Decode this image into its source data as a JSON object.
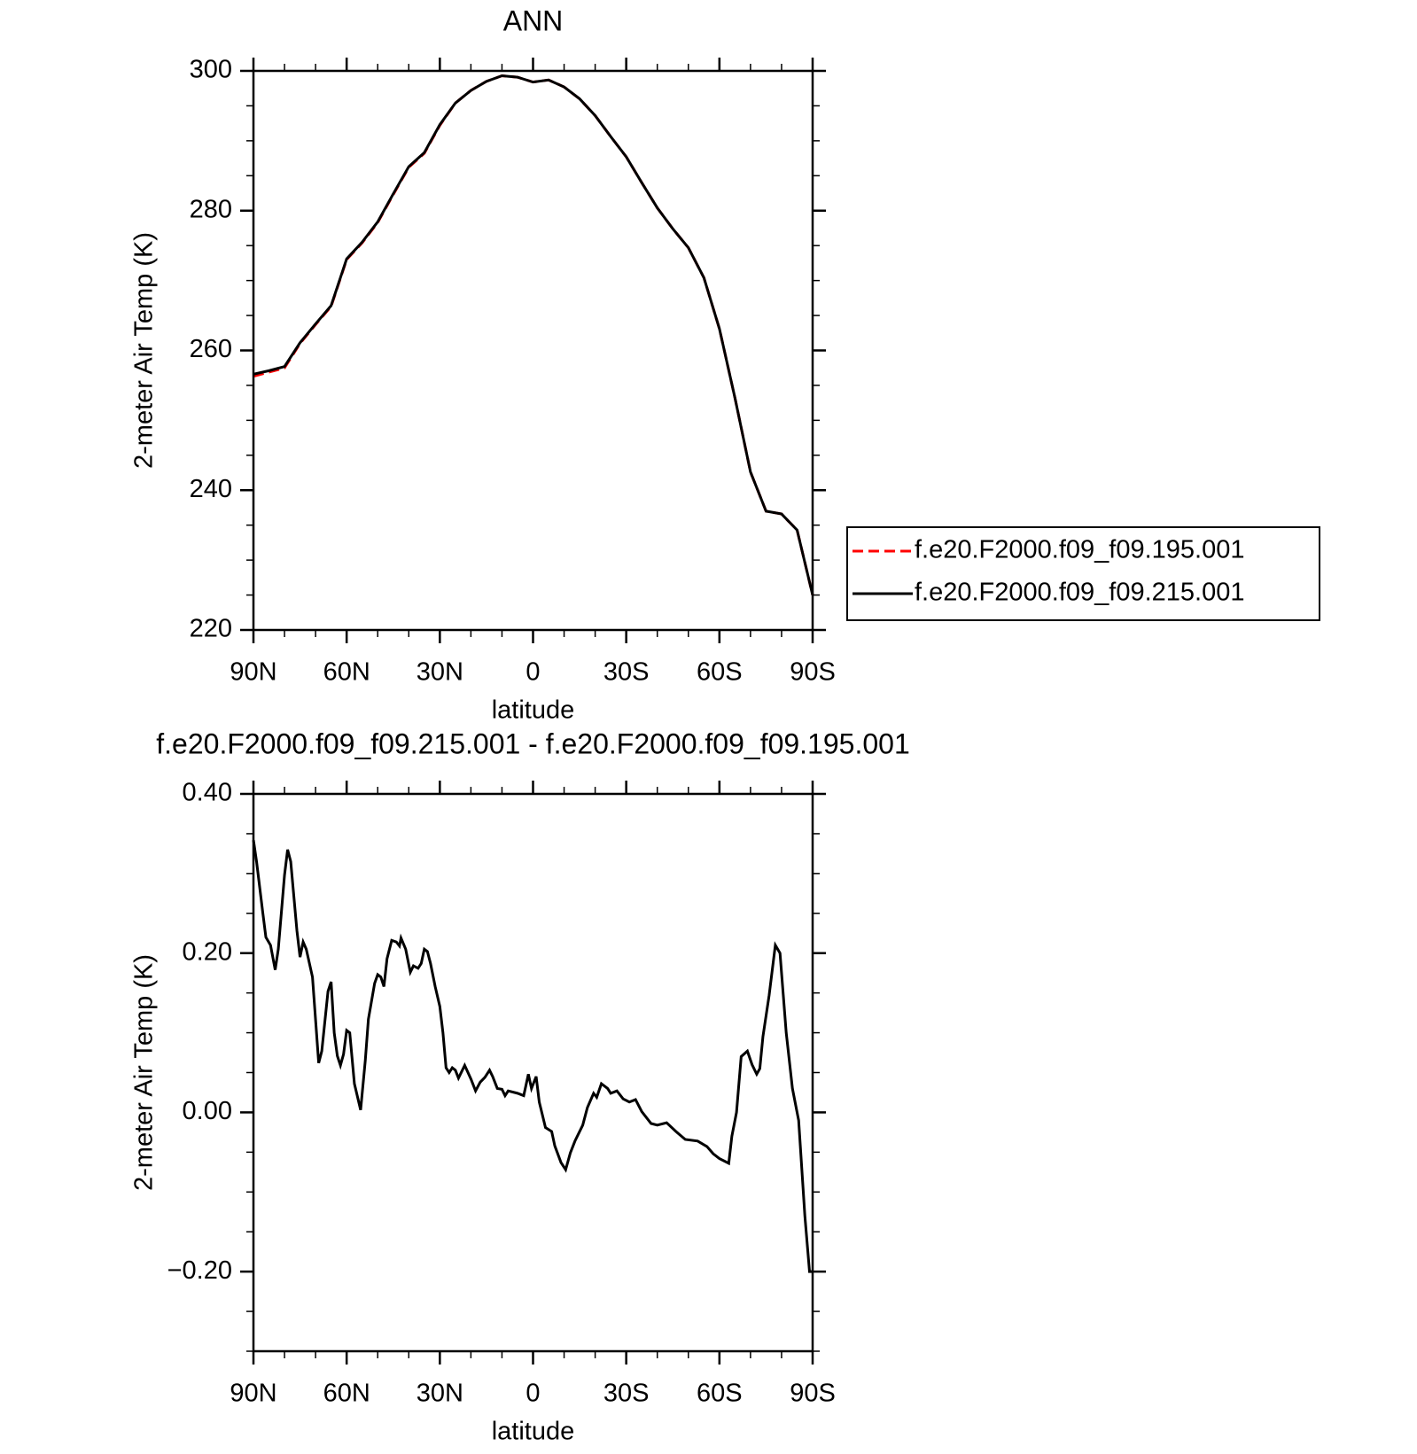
{
  "chart_data": [
    {
      "type": "line",
      "title": "ANN",
      "ylabel": "2-meter Air Temp (K)",
      "xlabel": "latitude",
      "x": [
        90,
        85,
        80,
        75,
        70,
        65,
        60,
        55,
        50,
        45,
        40,
        35,
        30,
        25,
        20,
        15,
        10,
        5,
        0,
        -5,
        -10,
        -15,
        -20,
        -25,
        -30,
        -35,
        -40,
        -45,
        -50,
        -55,
        -60,
        -65,
        -70,
        -75,
        -80,
        -85,
        -90
      ],
      "xlim": [
        90,
        -90
      ],
      "xticks": [
        {
          "value": 90,
          "label": "90N"
        },
        {
          "value": 60,
          "label": "60N"
        },
        {
          "value": 30,
          "label": "30N"
        },
        0,
        {
          "value": -30,
          "label": "30S"
        },
        {
          "value": -60,
          "label": "60S"
        },
        {
          "value": -90,
          "label": "90S"
        }
      ],
      "xminorticks": [
        80,
        70,
        50,
        40,
        20,
        10,
        -10,
        -20,
        -40,
        -50,
        -70,
        -80
      ],
      "ylim": [
        220,
        300
      ],
      "yticks": [
        220,
        240,
        260,
        280,
        300
      ],
      "yminorticks": [
        225,
        230,
        235,
        245,
        250,
        255,
        265,
        270,
        275,
        285,
        290,
        295
      ],
      "legend": "outside-right",
      "series": [
        {
          "name": "f.e20.F2000.f09_f09.195.001",
          "color": "#ff0000",
          "linestyle": "dashed",
          "values": [
            256.3,
            256.9,
            257.5,
            261.0,
            263.7,
            266.3,
            273.0,
            275.4,
            278.3,
            282.3,
            286.2,
            288.2,
            292.2,
            295.4,
            297.2,
            298.5,
            299.3,
            299.1,
            298.4,
            298.7,
            297.7,
            296.0,
            293.6,
            290.6,
            287.7,
            284.0,
            280.4,
            277.4,
            274.7,
            270.4,
            263.1,
            253.2,
            242.6,
            237.0,
            236.6,
            234.3,
            225.0
          ]
        },
        {
          "name": "f.e20.F2000.f09_f09.215.001",
          "color": "#000000",
          "linestyle": "solid",
          "values": [
            256.6,
            257.1,
            257.7,
            261.1,
            263.8,
            266.4,
            273.1,
            275.5,
            278.4,
            282.4,
            286.3,
            288.3,
            292.3,
            295.4,
            297.2,
            298.5,
            299.3,
            299.1,
            298.4,
            298.7,
            297.7,
            296.0,
            293.6,
            290.6,
            287.7,
            284.0,
            280.4,
            277.4,
            274.7,
            270.4,
            263.1,
            253.2,
            242.6,
            237.0,
            236.6,
            234.3,
            225.0
          ]
        }
      ]
    },
    {
      "type": "line",
      "title": "f.e20.F2000.f09_f09.215.001 - f.e20.F2000.f09_f09.195.001",
      "ylabel": "2-meter Air Temp (K)",
      "xlabel": "latitude",
      "x": [
        90,
        89,
        87,
        86,
        84.5,
        83,
        82,
        80,
        79,
        78,
        76,
        75,
        74,
        73,
        71,
        69,
        68,
        66,
        65,
        64,
        63,
        62,
        61,
        60,
        59,
        57.5,
        55.5,
        54,
        53,
        51,
        50,
        49,
        48,
        47,
        45.5,
        44,
        43,
        42.5,
        41,
        39.5,
        38.5,
        37,
        36,
        35,
        34,
        33,
        31.5,
        30,
        29,
        28,
        27,
        26,
        25,
        24,
        22,
        20,
        18.5,
        17,
        15.5,
        14,
        13,
        11.5,
        10,
        9,
        8,
        5,
        3,
        1.5,
        0.5,
        -1,
        -2,
        -4,
        -6,
        -7,
        -9,
        -10.5,
        -12,
        -13.5,
        -16,
        -17.5,
        -19.5,
        -20.5,
        -22,
        -24,
        -25,
        -27,
        -29,
        -31,
        -33,
        -35,
        -38,
        -40,
        -43,
        -46,
        -49,
        -53,
        -56,
        -58,
        -60,
        -62,
        -63,
        -64,
        -65.5,
        -67,
        -69,
        -70.5,
        -72,
        -73,
        -74,
        -76,
        -78,
        -79.5,
        -81.5,
        -83.5,
        -85.5,
        -87.5,
        -89,
        -90
      ],
      "xlim": [
        90,
        -90
      ],
      "xticks": [
        {
          "value": 90,
          "label": "90N"
        },
        {
          "value": 60,
          "label": "60N"
        },
        {
          "value": 30,
          "label": "30N"
        },
        0,
        {
          "value": -30,
          "label": "30S"
        },
        {
          "value": -60,
          "label": "60S"
        },
        {
          "value": -90,
          "label": "90S"
        }
      ],
      "xminorticks": [
        80,
        70,
        50,
        40,
        20,
        10,
        -10,
        -20,
        -40,
        -50,
        -70,
        -80
      ],
      "ylim": [
        -0.3,
        0.4
      ],
      "yticks": [
        {
          "value": -0.2,
          "label": "−0.20"
        },
        {
          "value": 0,
          "label": "0.00"
        },
        {
          "value": 0.2,
          "label": "0.20"
        },
        {
          "value": 0.4,
          "label": "0.40"
        }
      ],
      "yminorticks": [
        -0.3,
        -0.25,
        -0.15,
        -0.1,
        -0.05,
        0.05,
        0.1,
        0.15,
        0.25,
        0.3,
        0.35
      ],
      "color": "#000000",
      "values": [
        0.342,
        0.315,
        0.251,
        0.22,
        0.21,
        0.179,
        0.205,
        0.298,
        0.33,
        0.315,
        0.228,
        0.195,
        0.214,
        0.205,
        0.17,
        0.062,
        0.077,
        0.152,
        0.164,
        0.1,
        0.071,
        0.059,
        0.073,
        0.103,
        0.1,
        0.036,
        0.003,
        0.065,
        0.117,
        0.162,
        0.173,
        0.17,
        0.158,
        0.193,
        0.216,
        0.214,
        0.209,
        0.219,
        0.205,
        0.176,
        0.184,
        0.181,
        0.187,
        0.205,
        0.202,
        0.187,
        0.158,
        0.133,
        0.1,
        0.056,
        0.05,
        0.056,
        0.053,
        0.043,
        0.059,
        0.042,
        0.027,
        0.038,
        0.044,
        0.053,
        0.045,
        0.03,
        0.029,
        0.021,
        0.027,
        0.024,
        0.021,
        0.048,
        0.03,
        0.045,
        0.013,
        -0.019,
        -0.024,
        -0.042,
        -0.063,
        -0.072,
        -0.051,
        -0.036,
        -0.016,
        0.006,
        0.024,
        0.019,
        0.036,
        0.03,
        0.024,
        0.027,
        0.017,
        0.013,
        0.016,
        0.001,
        -0.014,
        -0.016,
        -0.013,
        -0.024,
        -0.034,
        -0.036,
        -0.043,
        -0.052,
        -0.058,
        -0.062,
        -0.064,
        -0.03,
        0.0,
        0.07,
        0.077,
        0.06,
        0.048,
        0.055,
        0.095,
        0.147,
        0.21,
        0.2,
        0.1,
        0.03,
        -0.01,
        -0.13,
        -0.2,
        -0.2
      ]
    }
  ]
}
